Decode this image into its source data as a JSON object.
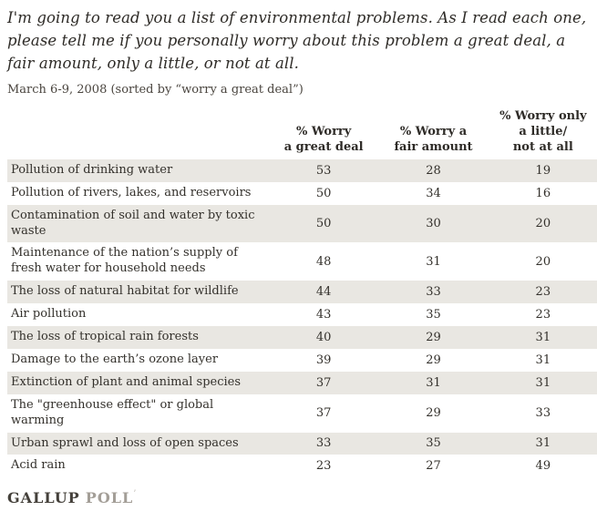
{
  "header": {
    "question": "I'm going to read you a list of environmental problems. As I read each one, please tell me if you personally worry about this problem a great deal, a fair amount, only a little, or not at all.",
    "date_note": "March 6-9, 2008 (sorted by “worry a great deal”)"
  },
  "chart_data": {
    "type": "table",
    "title": "I'm going to read you a list of environmental problems. As I read each one, please tell me if you personally worry about this problem a great deal, a fair amount, only a little, or not at all.",
    "subtitle": "March 6-9, 2008 (sorted by “worry a great deal”)",
    "columns": [
      "",
      "% Worry a great deal",
      "% Worry a fair amount",
      "% Worry only a little/ not at all"
    ],
    "columns_display": [
      "",
      "% Worry\na great deal",
      "% Worry a\nfair amount",
      "% Worry only\na little/\nnot at all"
    ],
    "rows": [
      {
        "label": "Pollution of drinking water",
        "values": [
          53,
          28,
          19
        ]
      },
      {
        "label": "Pollution of rivers, lakes, and reservoirs",
        "values": [
          50,
          34,
          16
        ]
      },
      {
        "label": "Contamination of soil and water by toxic waste",
        "values": [
          50,
          30,
          20
        ]
      },
      {
        "label": "Maintenance of the nation’s supply of fresh water for household needs",
        "values": [
          48,
          31,
          20
        ]
      },
      {
        "label": "The loss of natural habitat for wildlife",
        "values": [
          44,
          33,
          23
        ]
      },
      {
        "label": "Air pollution",
        "values": [
          43,
          35,
          23
        ]
      },
      {
        "label": "The loss of tropical rain forests",
        "values": [
          40,
          29,
          31
        ]
      },
      {
        "label": "Damage to the earth’s ozone layer",
        "values": [
          39,
          29,
          31
        ]
      },
      {
        "label": "Extinction of plant and animal species",
        "values": [
          37,
          31,
          31
        ]
      },
      {
        "label": "The \"greenhouse effect\" or global warming",
        "values": [
          37,
          29,
          33
        ]
      },
      {
        "label": "Urban sprawl and loss of open spaces",
        "values": [
          33,
          35,
          31
        ]
      },
      {
        "label": "Acid rain",
        "values": [
          23,
          27,
          49
        ]
      }
    ]
  },
  "footer": {
    "brand_bold": "GALLUP",
    "brand_light": "POLL",
    "brand_mark": "’"
  },
  "colors": {
    "stripe": "#e9e7e2",
    "text": "#33302b",
    "brand-dark": "#44403a",
    "brand-light": "#a39e97"
  }
}
